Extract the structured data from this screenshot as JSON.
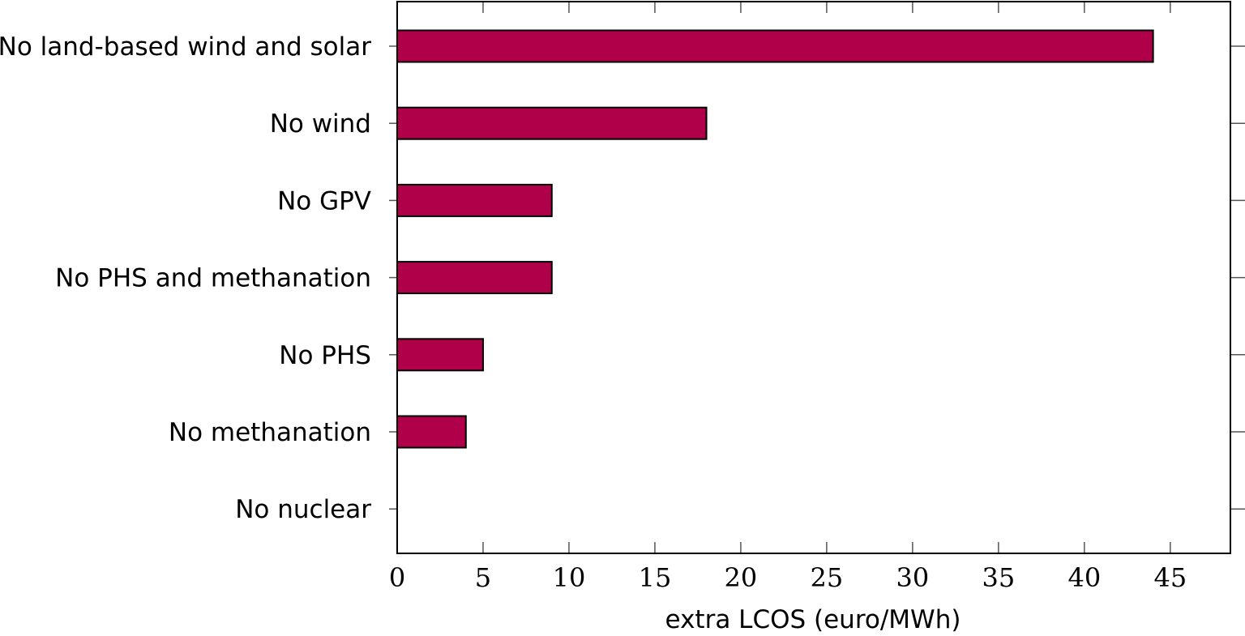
{
  "chart_data": {
    "type": "bar",
    "orientation": "horizontal",
    "categories": [
      "No land-based wind and solar",
      "No wind",
      "No GPV",
      "No PHS and methanation",
      "No PHS",
      "No methanation",
      "No nuclear"
    ],
    "values": [
      44,
      18,
      9,
      9,
      5,
      4,
      0
    ],
    "title": "",
    "xlabel": "extra LCOS (euro/MWh)",
    "ylabel": "",
    "xlim": [
      0,
      48.5
    ],
    "xticks": [
      0,
      5,
      10,
      15,
      20,
      25,
      30,
      35,
      40,
      45
    ],
    "xtick_labels": [
      "0",
      "5",
      "10",
      "15",
      "20",
      "25",
      "30",
      "35",
      "40",
      "45"
    ],
    "bar_color": "#b0004a",
    "bar_edge_color": "#000000",
    "grid": false,
    "legend": "none"
  }
}
